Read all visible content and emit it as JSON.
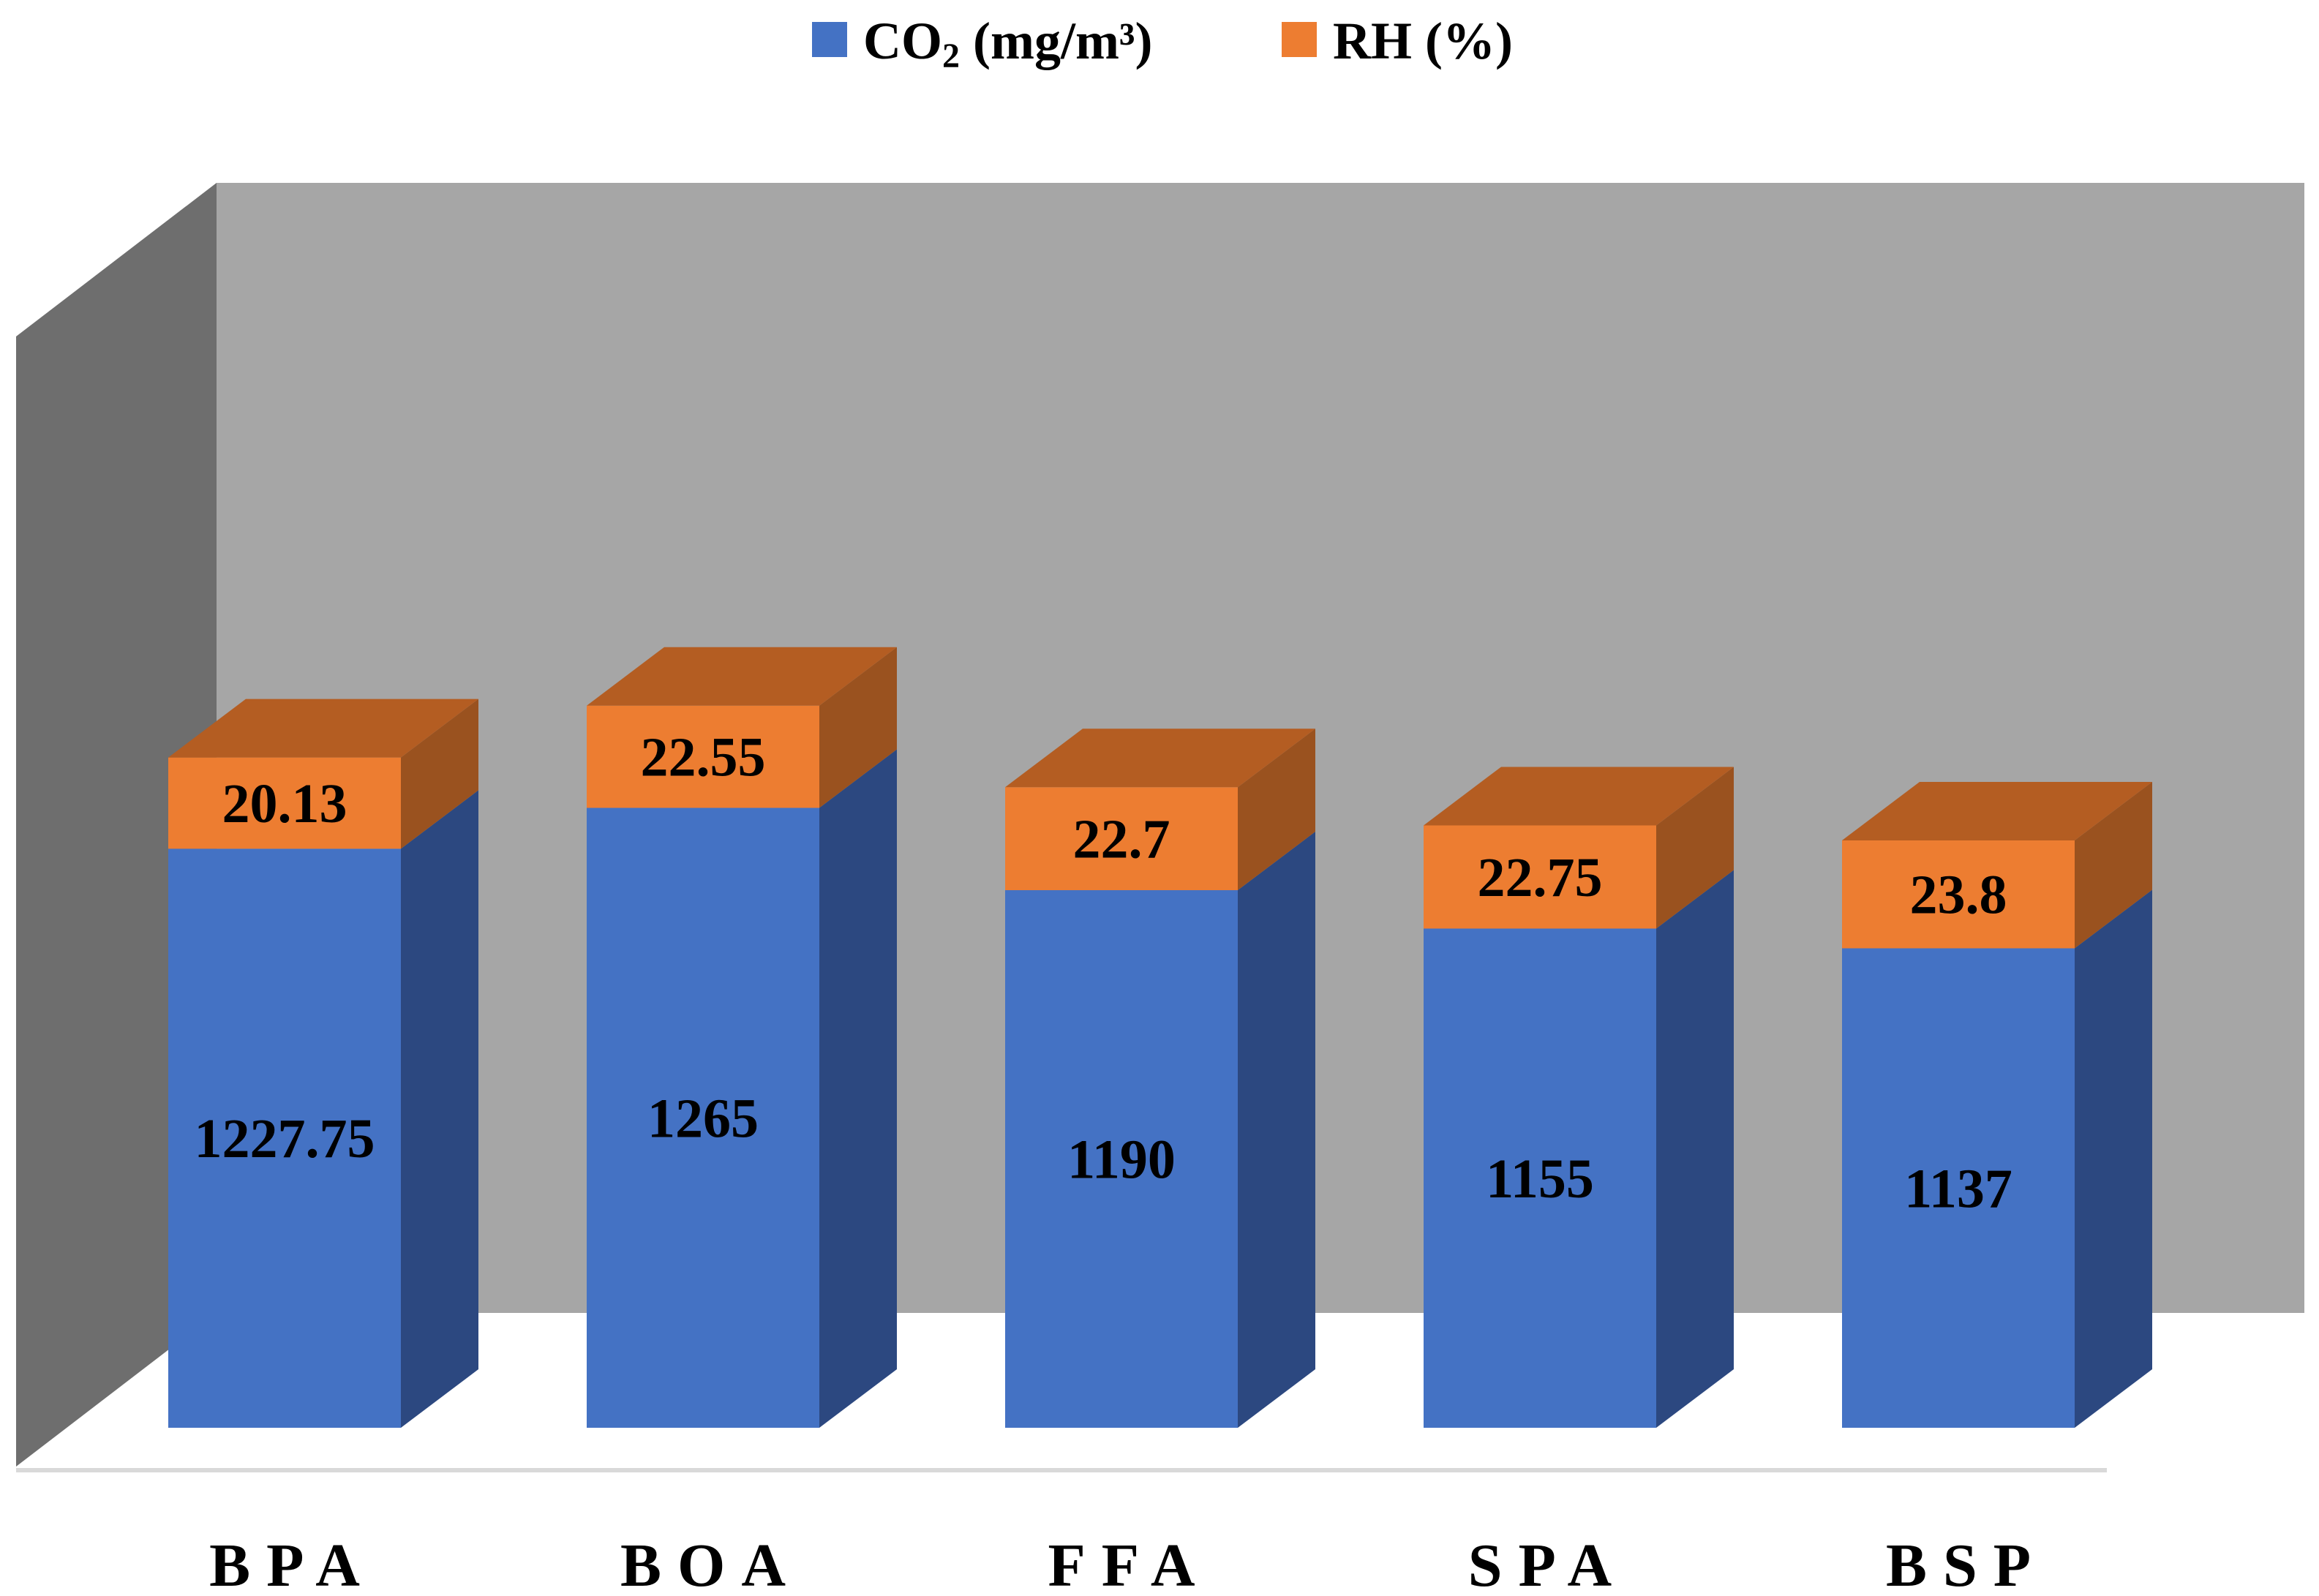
{
  "chart_data": {
    "type": "bar",
    "stacked": true,
    "three_d": true,
    "categories": [
      "BPA",
      "BOA",
      "FFA",
      "SPA",
      "BSP"
    ],
    "series": [
      {
        "name": "CO2 (mg/m3)",
        "values": [
          1227.75,
          1265,
          1190,
          1155,
          1137
        ],
        "labels": [
          "1227.75",
          "1265",
          "1190",
          "1155",
          "1137"
        ]
      },
      {
        "name": "RH (%)",
        "values": [
          20.13,
          22.55,
          22.7,
          22.75,
          23.8
        ],
        "labels": [
          "20.13",
          "22.55",
          "22.7",
          "22.75",
          "23.8"
        ]
      }
    ],
    "legend": {
      "co2": {
        "prefix": "CO",
        "sub": "2",
        "suffix": " (mg/m³)"
      },
      "rh": "RH (%)",
      "placement": "top-center"
    },
    "colors": {
      "co2_front": "#4472C4",
      "co2_side": "#2C4880",
      "rh_front": "#ED7D31",
      "rh_side": "#9A521F",
      "rh_top": "#B45D22",
      "back_wall": "#A6A6A6",
      "side_wall": "#6E6E6E",
      "floor_edge": "#D9D9D9"
    },
    "title": "",
    "xlabel": "",
    "ylabel": ""
  }
}
